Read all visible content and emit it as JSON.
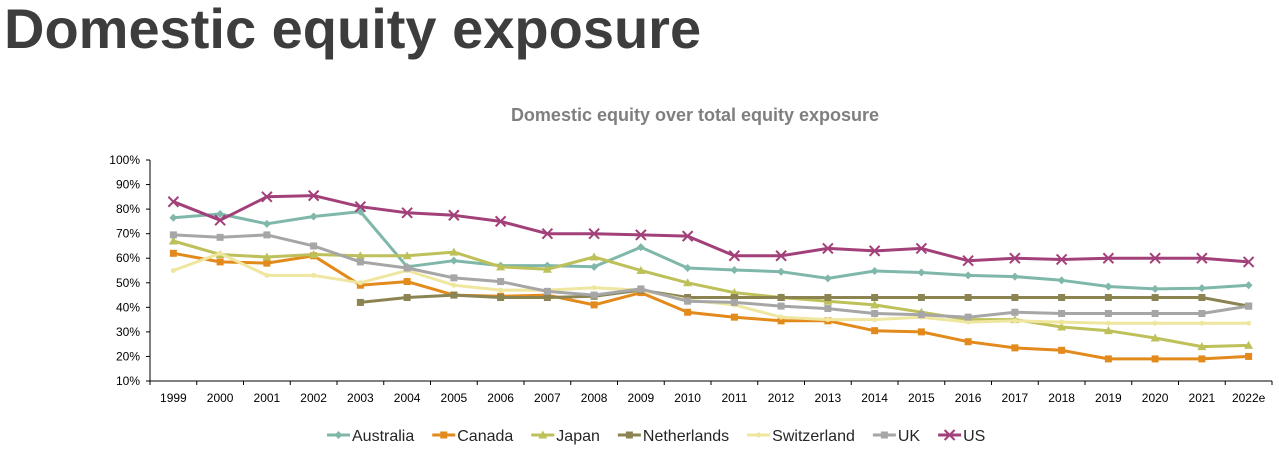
{
  "page": {
    "title": "Domestic equity exposure"
  },
  "chart_data": {
    "type": "line",
    "title": "Domestic equity over total equity exposure",
    "xlabel": "",
    "ylabel": "",
    "categories": [
      "1999",
      "2000",
      "2001",
      "2002",
      "2003",
      "2004",
      "2005",
      "2006",
      "2007",
      "2008",
      "2009",
      "2010",
      "2011",
      "2012",
      "2013",
      "2014",
      "2015",
      "2016",
      "2017",
      "2018",
      "2019",
      "2020",
      "2021",
      "2022e"
    ],
    "ylim": [
      0.1,
      1.0
    ],
    "yticks": [
      0.1,
      0.2,
      0.3,
      0.4,
      0.5,
      0.6,
      0.7,
      0.8,
      0.9,
      1.0
    ],
    "ytick_labels": [
      "10%",
      "20%",
      "30%",
      "40%",
      "50%",
      "60%",
      "70%",
      "80%",
      "90%",
      "100%"
    ],
    "grid": false,
    "legend_position": "bottom",
    "series": [
      {
        "name": "Australia",
        "color": "#7fb8aa",
        "marker": "diamond",
        "values": [
          0.765,
          0.78,
          0.74,
          0.77,
          0.79,
          0.565,
          0.59,
          0.57,
          0.57,
          0.565,
          0.645,
          0.56,
          0.552,
          0.545,
          0.518,
          0.548,
          0.542,
          0.53,
          0.525,
          0.51,
          0.485,
          0.475,
          0.478,
          0.49
        ]
      },
      {
        "name": "Canada",
        "color": "#e28a1c",
        "marker": "square",
        "values": [
          0.62,
          0.585,
          0.58,
          0.61,
          0.49,
          0.505,
          0.45,
          0.445,
          0.45,
          0.41,
          0.46,
          0.38,
          0.36,
          0.345,
          0.345,
          0.305,
          0.3,
          0.26,
          0.235,
          0.225,
          0.19,
          0.19,
          0.19,
          0.2
        ]
      },
      {
        "name": "Japan",
        "color": "#bec05a",
        "marker": "triangle",
        "values": [
          0.67,
          0.615,
          0.605,
          0.615,
          0.61,
          0.61,
          0.625,
          0.565,
          0.555,
          0.605,
          0.55,
          0.5,
          0.46,
          0.44,
          0.425,
          0.41,
          0.38,
          0.35,
          0.35,
          0.32,
          0.305,
          0.275,
          0.24,
          0.245
        ]
      },
      {
        "name": "Netherlands",
        "color": "#8b8452",
        "marker": "square",
        "values": [
          null,
          null,
          null,
          null,
          0.42,
          0.44,
          0.45,
          0.44,
          0.44,
          0.445,
          0.47,
          0.44,
          0.44,
          0.44,
          0.44,
          0.44,
          0.44,
          0.44,
          0.44,
          0.44,
          0.44,
          0.44,
          0.44,
          0.405
        ]
      },
      {
        "name": "Switzerland",
        "color": "#efe6a0",
        "marker": "circle",
        "values": [
          0.55,
          0.62,
          0.53,
          0.53,
          0.5,
          0.55,
          0.49,
          0.47,
          0.47,
          0.48,
          0.47,
          0.43,
          0.41,
          0.36,
          0.35,
          0.35,
          0.36,
          0.34,
          0.345,
          0.34,
          0.335,
          0.335,
          0.335,
          0.335
        ]
      },
      {
        "name": "UK",
        "color": "#a6a6a6",
        "marker": "square",
        "values": [
          0.695,
          0.685,
          0.695,
          0.65,
          0.585,
          0.56,
          0.52,
          0.505,
          0.465,
          0.45,
          0.475,
          0.425,
          0.42,
          0.405,
          0.395,
          0.375,
          0.37,
          0.36,
          0.38,
          0.375,
          0.375,
          0.375,
          0.375,
          0.405
        ]
      },
      {
        "name": "US",
        "color": "#a2407a",
        "marker": "x",
        "values": [
          0.83,
          0.755,
          0.85,
          0.855,
          0.81,
          0.785,
          0.775,
          0.75,
          0.7,
          0.7,
          0.695,
          0.69,
          0.61,
          0.61,
          0.64,
          0.63,
          0.64,
          0.59,
          0.6,
          0.595,
          0.6,
          0.6,
          0.6,
          0.585
        ]
      }
    ]
  }
}
